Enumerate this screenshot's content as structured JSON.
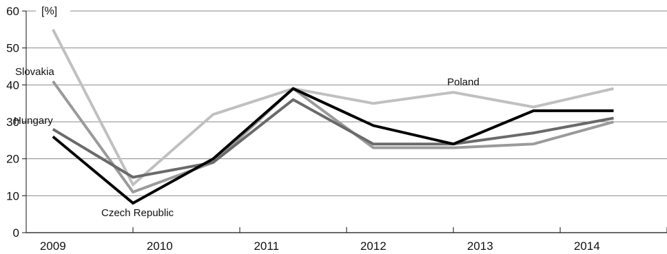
{
  "chart_data": {
    "type": "line",
    "title": "",
    "xlabel": "",
    "ylabel": "[%]",
    "ylim": [
      0,
      60
    ],
    "yticks": [
      "0",
      "10",
      "20",
      "30",
      "40",
      "50",
      "60"
    ],
    "x": [
      2009,
      2009.75,
      2010.5,
      2011.25,
      2012,
      2012.75,
      2013.5,
      2014.25
    ],
    "xtick_labels": [
      "2009",
      "2010",
      "2011",
      "2012",
      "2013",
      "2014"
    ],
    "grid": "horizontal",
    "legend": "inline labels",
    "series": [
      {
        "name": "Poland",
        "color": "#c0c0c0",
        "values": [
          55,
          13,
          32,
          39,
          35,
          38,
          34,
          39
        ]
      },
      {
        "name": "Slovakia",
        "color": "#9a9a9a",
        "values": [
          41,
          11,
          19,
          39,
          23,
          23,
          24,
          30
        ]
      },
      {
        "name": "Hungary",
        "color": "#6a6a6a",
        "values": [
          28,
          15,
          19,
          36,
          24,
          24,
          27,
          31
        ]
      },
      {
        "name": "Czech Republic",
        "color": "#000000",
        "values": [
          26,
          8,
          20,
          39,
          29,
          24,
          33,
          33
        ]
      }
    ]
  }
}
